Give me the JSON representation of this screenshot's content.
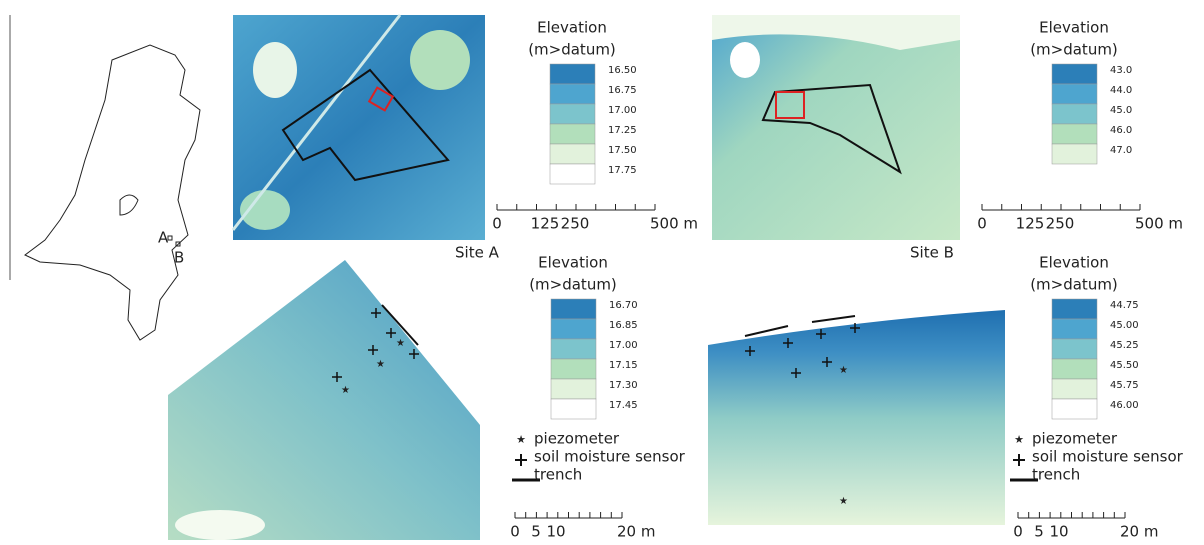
{
  "figure": {
    "map_labels": [
      "A",
      "B"
    ],
    "site_labels": [
      "Site A",
      "Site B"
    ],
    "legends": [
      {
        "title": [
          "Elevation",
          "(m>datum)"
        ],
        "entries": [
          {
            "label": "16.50",
            "color": "#2c7fb8"
          },
          {
            "label": "16.75",
            "color": "#4ea5cf"
          },
          {
            "label": "17.00",
            "color": "#7cc4cc"
          },
          {
            "label": "17.25",
            "color": "#b2dfbb"
          },
          {
            "label": "17.50",
            "color": "#e2f2dc"
          },
          {
            "label": "17.75",
            "color": "#ffffff"
          }
        ]
      },
      {
        "title": [
          "Elevation",
          "(m>datum)"
        ],
        "entries": [
          {
            "label": "43.0",
            "color": "#2c7fb8"
          },
          {
            "label": "44.0",
            "color": "#4ea5cf"
          },
          {
            "label": "45.0",
            "color": "#7cc4cc"
          },
          {
            "label": "46.0",
            "color": "#b2dfbb"
          },
          {
            "label": "47.0",
            "color": "#e2f2dc"
          }
        ]
      },
      {
        "title": [
          "Elevation",
          "(m>datum)"
        ],
        "entries": [
          {
            "label": "16.70",
            "color": "#2c7fb8"
          },
          {
            "label": "16.85",
            "color": "#4ea5cf"
          },
          {
            "label": "17.00",
            "color": "#7cc4cc"
          },
          {
            "label": "17.15",
            "color": "#b2dfbb"
          },
          {
            "label": "17.30",
            "color": "#e2f2dc"
          },
          {
            "label": "17.45",
            "color": "#ffffff"
          }
        ]
      },
      {
        "title": [
          "Elevation",
          "(m>datum)"
        ],
        "entries": [
          {
            "label": "44.75",
            "color": "#2c7fb8"
          },
          {
            "label": "45.00",
            "color": "#4ea5cf"
          },
          {
            "label": "45.25",
            "color": "#7cc4cc"
          },
          {
            "label": "45.50",
            "color": "#b2dfbb"
          },
          {
            "label": "45.75",
            "color": "#e2f2dc"
          },
          {
            "label": "46.00",
            "color": "#ffffff"
          }
        ]
      }
    ],
    "scalebars": [
      {
        "labels": [
          "0",
          "125",
          "250",
          "500 m"
        ]
      },
      {
        "labels": [
          "0",
          "125",
          "250",
          "500 m"
        ]
      },
      {
        "labels": [
          "0",
          "5",
          "10",
          "20 m"
        ]
      },
      {
        "labels": [
          "0",
          "5",
          "10",
          "20 m"
        ]
      }
    ],
    "symbol_legends": [
      {
        "entries": [
          "piezometer",
          "soil moisture sensor",
          "trench"
        ]
      },
      {
        "entries": [
          "piezometer",
          "soil moisture sensor",
          "trench"
        ]
      }
    ]
  }
}
